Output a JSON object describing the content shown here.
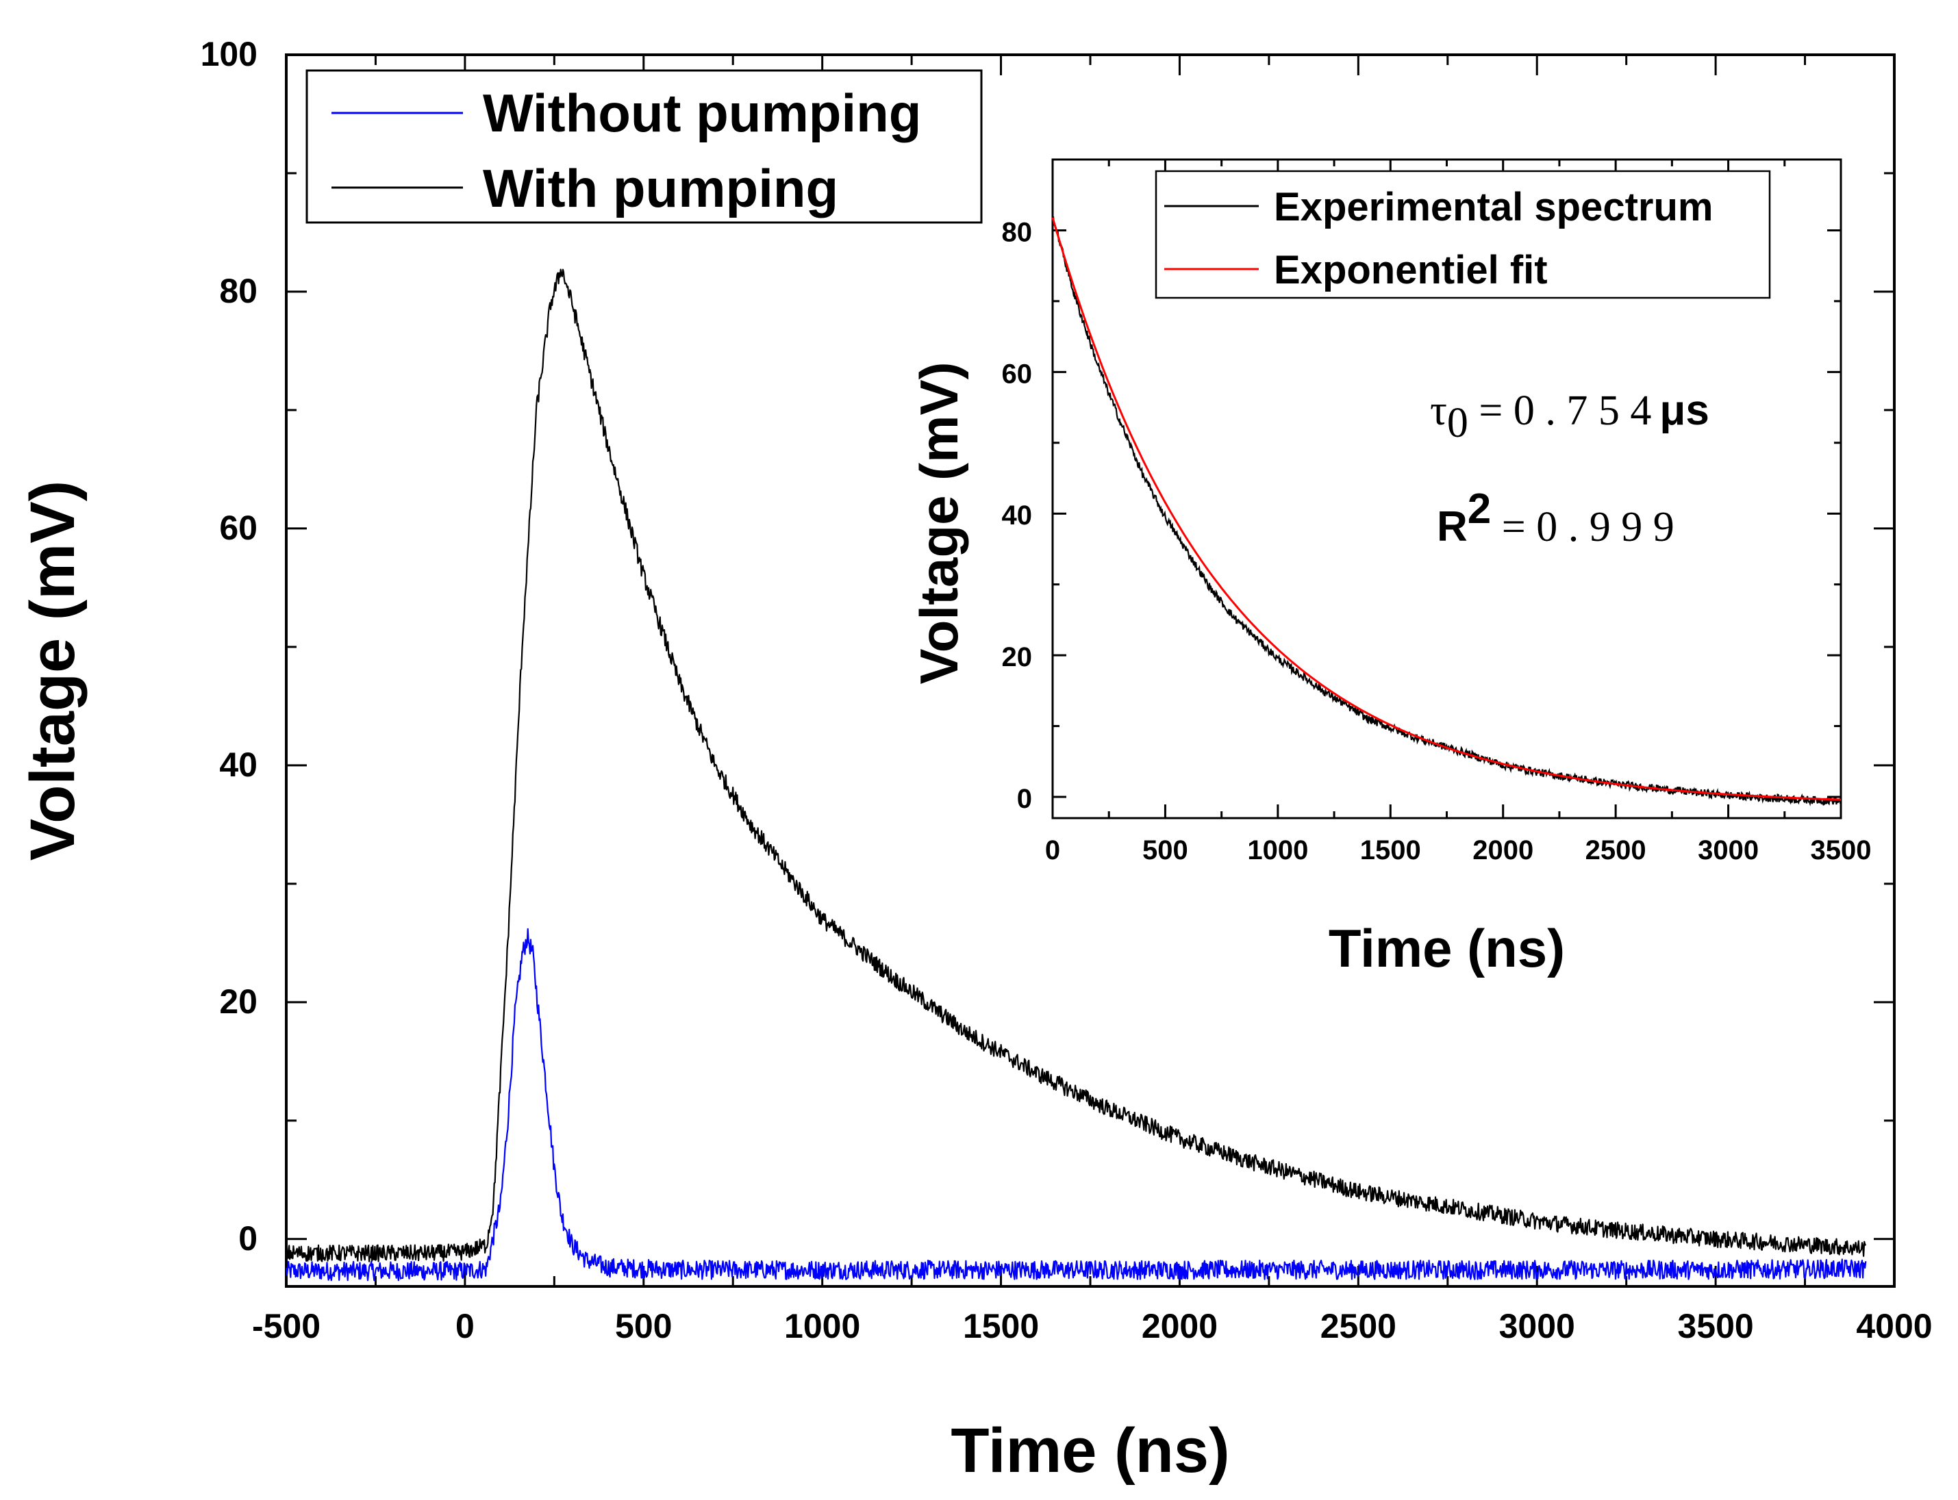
{
  "chart_data": [
    {
      "type": "line",
      "xlabel": "Time (ns)",
      "ylabel": "Voltage (mV)",
      "xlim": [
        -500,
        4000
      ],
      "ylim": [
        -4,
        100
      ],
      "xticks": [
        -500,
        0,
        500,
        1000,
        1500,
        2000,
        2500,
        3000,
        3500,
        4000
      ],
      "yticks": [
        0,
        20,
        40,
        60,
        80,
        100
      ],
      "grid": false,
      "legend_position": "top-left",
      "series": [
        {
          "name": "Without pumping",
          "color": "#0000ff",
          "x": [
            -500,
            -300,
            -100,
            0,
            60,
            100,
            120,
            140,
            160,
            175,
            190,
            210,
            230,
            250,
            270,
            300,
            340,
            400,
            600,
            1000,
            1500,
            2000,
            2500,
            3000,
            3500,
            3920
          ],
          "y": [
            -2.7,
            -2.7,
            -2.7,
            -2.7,
            -2.5,
            3,
            10,
            19,
            24,
            25.5,
            24,
            18,
            12,
            6,
            2,
            -0.5,
            -1.8,
            -2.4,
            -2.6,
            -2.6,
            -2.6,
            -2.6,
            -2.6,
            -2.6,
            -2.6,
            -2.5
          ]
        },
        {
          "name": "With pumping",
          "color": "#000000",
          "x": [
            -500,
            -300,
            -100,
            0,
            60,
            80,
            120,
            160,
            200,
            240,
            270,
            300,
            350,
            400,
            500,
            600,
            700,
            800,
            900,
            1000,
            1200,
            1400,
            1600,
            1800,
            2000,
            2200,
            2500,
            2800,
            3000,
            3200,
            3500,
            3920
          ],
          "y": [
            -1.2,
            -1.2,
            -1.2,
            -1.1,
            -0.5,
            3,
            25,
            50,
            70,
            79,
            82,
            79,
            73,
            67,
            56,
            47,
            40,
            35,
            31,
            27,
            22,
            17.5,
            14,
            11,
            8.5,
            6.5,
            4,
            2.5,
            1.5,
            0.8,
            0,
            -0.8
          ]
        }
      ]
    },
    {
      "type": "line",
      "xlabel": "Time (ns)",
      "ylabel": "Voltage (mV)",
      "xlim": [
        0,
        3500
      ],
      "ylim": [
        -3,
        90
      ],
      "xticks": [
        0,
        500,
        1000,
        1500,
        2000,
        2500,
        3000,
        3500
      ],
      "yticks": [
        0,
        20,
        40,
        60,
        80
      ],
      "grid": false,
      "legend_position": "top-right",
      "annotations": {
        "tau_symbol": "τ",
        "tau_subscript": "0",
        "tau_value": " = 0 . 7 5 4",
        "tau_unit": "μs",
        "r2_symbol": "R",
        "r2_superscript": "2",
        "r2_value": " = 0 .  9 9 9"
      },
      "series": [
        {
          "name": "Experimental spectrum",
          "color": "#000000",
          "x": [
            0,
            100,
            200,
            300,
            400,
            500,
            600,
            700,
            800,
            900,
            1000,
            1200,
            1400,
            1600,
            1800,
            2000,
            2200,
            2500,
            2800,
            3000,
            3200,
            3500
          ],
          "y": [
            82,
            70.5,
            61,
            53,
            45.5,
            39.5,
            34.5,
            29.5,
            25.5,
            22.5,
            19.5,
            15,
            11,
            8.5,
            6.5,
            4.5,
            3.2,
            1.8,
            0.8,
            0.2,
            -0.2,
            -0.6
          ]
        },
        {
          "name": "Exponentiel fit",
          "color": "#ff0000",
          "tau_ns": 754,
          "amplitude": 83,
          "offset": -1.2,
          "x_start": 0,
          "x_end": 3500
        }
      ]
    }
  ]
}
